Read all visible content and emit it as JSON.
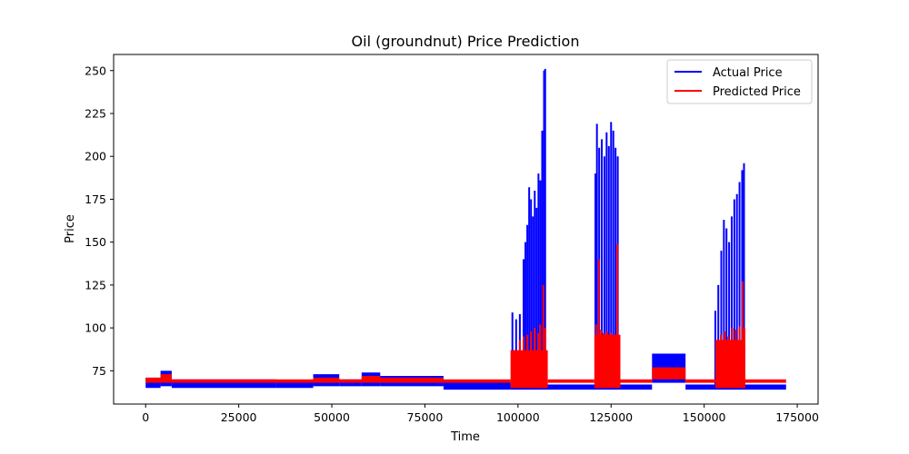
{
  "chart_data": {
    "type": "line",
    "title": "Oil (groundnut) Price Prediction",
    "xlabel": "Time",
    "ylabel": "Price",
    "xlim": [
      -8600,
      180600
    ],
    "ylim": [
      55.6,
      259.4
    ],
    "xticks": [
      0,
      25000,
      50000,
      75000,
      100000,
      125000,
      150000,
      175000
    ],
    "xtick_labels": [
      "0",
      "25000",
      "50000",
      "75000",
      "100000",
      "125000",
      "150000",
      "175000"
    ],
    "yticks": [
      75,
      100,
      125,
      150,
      175,
      200,
      225,
      250
    ],
    "ytick_labels": [
      "75",
      "100",
      "125",
      "150",
      "175",
      "200",
      "225",
      "250"
    ],
    "grid": false,
    "legend": "upper right",
    "series": [
      {
        "name": "Actual Price",
        "color": "#0000ff",
        "bands": [
          {
            "x0": 0,
            "x1": 4000,
            "lo": 65,
            "hi": 71
          },
          {
            "x0": 4000,
            "x1": 7000,
            "lo": 66,
            "hi": 75
          },
          {
            "x0": 7000,
            "x1": 35000,
            "lo": 65,
            "hi": 70
          },
          {
            "x0": 35000,
            "x1": 45000,
            "lo": 65,
            "hi": 69
          },
          {
            "x0": 45000,
            "x1": 52000,
            "lo": 66,
            "hi": 73
          },
          {
            "x0": 52000,
            "x1": 58000,
            "lo": 66,
            "hi": 70
          },
          {
            "x0": 58000,
            "x1": 63000,
            "lo": 66,
            "hi": 74
          },
          {
            "x0": 63000,
            "x1": 80000,
            "lo": 66,
            "hi": 72
          },
          {
            "x0": 80000,
            "x1": 98000,
            "lo": 64,
            "hi": 69
          },
          {
            "x0": 98000,
            "x1": 136000,
            "lo": 64,
            "hi": 67
          },
          {
            "x0": 136000,
            "x1": 145000,
            "lo": 68,
            "hi": 85
          },
          {
            "x0": 145000,
            "x1": 172000,
            "lo": 64,
            "hi": 67
          }
        ],
        "spikes": [
          {
            "x": 98500,
            "y": 109
          },
          {
            "x": 99500,
            "y": 105
          },
          {
            "x": 100500,
            "y": 108
          },
          {
            "x": 101500,
            "y": 140
          },
          {
            "x": 102000,
            "y": 150
          },
          {
            "x": 102500,
            "y": 160
          },
          {
            "x": 103000,
            "y": 182
          },
          {
            "x": 103500,
            "y": 175
          },
          {
            "x": 104000,
            "y": 165
          },
          {
            "x": 104500,
            "y": 180
          },
          {
            "x": 105000,
            "y": 170
          },
          {
            "x": 105500,
            "y": 190
          },
          {
            "x": 106000,
            "y": 186
          },
          {
            "x": 106500,
            "y": 215
          },
          {
            "x": 107000,
            "y": 250
          },
          {
            "x": 107300,
            "y": 251
          },
          {
            "x": 120800,
            "y": 190
          },
          {
            "x": 121200,
            "y": 219
          },
          {
            "x": 121800,
            "y": 205
          },
          {
            "x": 122500,
            "y": 210
          },
          {
            "x": 123200,
            "y": 200
          },
          {
            "x": 123800,
            "y": 214
          },
          {
            "x": 124400,
            "y": 206
          },
          {
            "x": 125000,
            "y": 220
          },
          {
            "x": 125600,
            "y": 215
          },
          {
            "x": 126200,
            "y": 205
          },
          {
            "x": 126800,
            "y": 200
          },
          {
            "x": 153000,
            "y": 110
          },
          {
            "x": 153800,
            "y": 125
          },
          {
            "x": 154600,
            "y": 145
          },
          {
            "x": 155300,
            "y": 163
          },
          {
            "x": 156000,
            "y": 158
          },
          {
            "x": 156700,
            "y": 150
          },
          {
            "x": 157400,
            "y": 165
          },
          {
            "x": 158100,
            "y": 175
          },
          {
            "x": 158800,
            "y": 178
          },
          {
            "x": 159500,
            "y": 185
          },
          {
            "x": 160200,
            "y": 192
          },
          {
            "x": 160700,
            "y": 196
          }
        ]
      },
      {
        "name": "Predicted Price",
        "color": "#ff0000",
        "bands": [
          {
            "x0": 0,
            "x1": 4000,
            "lo": 68,
            "hi": 71
          },
          {
            "x0": 4000,
            "x1": 7000,
            "lo": 68,
            "hi": 73
          },
          {
            "x0": 7000,
            "x1": 45000,
            "lo": 68,
            "hi": 70
          },
          {
            "x0": 45000,
            "x1": 52000,
            "lo": 68,
            "hi": 71
          },
          {
            "x0": 52000,
            "x1": 58000,
            "lo": 68,
            "hi": 70
          },
          {
            "x0": 58000,
            "x1": 63000,
            "lo": 68,
            "hi": 72
          },
          {
            "x0": 63000,
            "x1": 80000,
            "lo": 68,
            "hi": 71
          },
          {
            "x0": 80000,
            "x1": 98000,
            "lo": 68,
            "hi": 70
          },
          {
            "x0": 98000,
            "x1": 108000,
            "lo": 65,
            "hi": 87
          },
          {
            "x0": 108000,
            "x1": 120500,
            "lo": 68,
            "hi": 70
          },
          {
            "x0": 120500,
            "x1": 127500,
            "lo": 65,
            "hi": 96
          },
          {
            "x0": 127500,
            "x1": 136000,
            "lo": 68,
            "hi": 70
          },
          {
            "x0": 136000,
            "x1": 145000,
            "lo": 70,
            "hi": 77
          },
          {
            "x0": 145000,
            "x1": 153000,
            "lo": 68,
            "hi": 70
          },
          {
            "x0": 153000,
            "x1": 161000,
            "lo": 65,
            "hi": 93
          },
          {
            "x0": 161000,
            "x1": 172000,
            "lo": 68,
            "hi": 70
          }
        ],
        "spikes": [
          {
            "x": 99000,
            "y": 87
          },
          {
            "x": 100500,
            "y": 93
          },
          {
            "x": 101500,
            "y": 95
          },
          {
            "x": 102500,
            "y": 96
          },
          {
            "x": 103500,
            "y": 98
          },
          {
            "x": 104500,
            "y": 100
          },
          {
            "x": 105500,
            "y": 97
          },
          {
            "x": 106000,
            "y": 102
          },
          {
            "x": 106800,
            "y": 125
          },
          {
            "x": 107300,
            "y": 100
          },
          {
            "x": 121000,
            "y": 102
          },
          {
            "x": 121700,
            "y": 140
          },
          {
            "x": 122300,
            "y": 99
          },
          {
            "x": 123000,
            "y": 97
          },
          {
            "x": 124000,
            "y": 98
          },
          {
            "x": 125000,
            "y": 97
          },
          {
            "x": 126000,
            "y": 96
          },
          {
            "x": 126700,
            "y": 149
          },
          {
            "x": 153500,
            "y": 92
          },
          {
            "x": 154500,
            "y": 96
          },
          {
            "x": 155500,
            "y": 98
          },
          {
            "x": 156500,
            "y": 95
          },
          {
            "x": 157500,
            "y": 100
          },
          {
            "x": 158500,
            "y": 99
          },
          {
            "x": 159500,
            "y": 101
          },
          {
            "x": 160300,
            "y": 127
          },
          {
            "x": 160800,
            "y": 100
          }
        ]
      }
    ]
  }
}
